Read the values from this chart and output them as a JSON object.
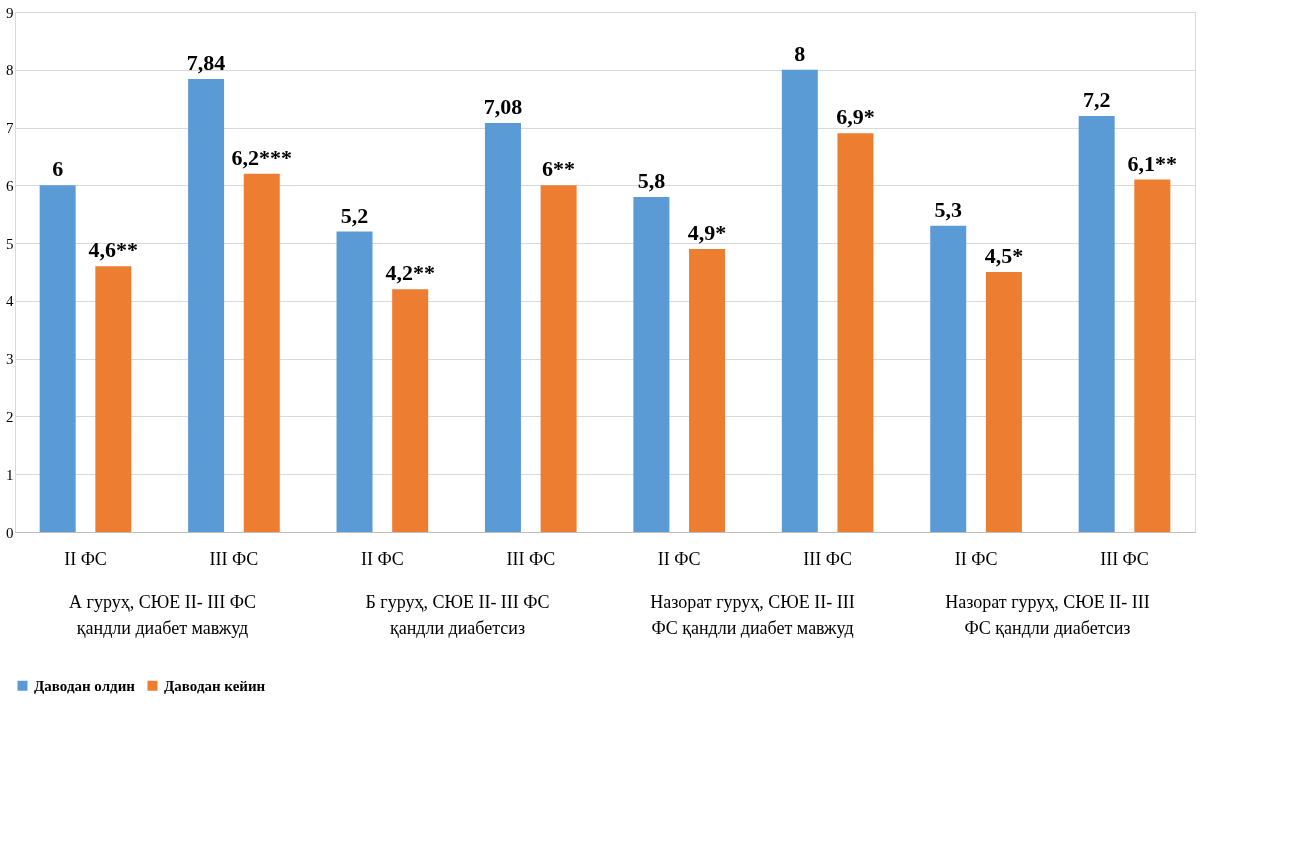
{
  "chart_data": {
    "type": "bar",
    "categories": [
      "II ФС",
      "III ФС",
      "II ФС",
      "III ФС",
      "II ФС",
      "III ФС",
      "II ФС",
      "III ФС"
    ],
    "series": [
      {
        "name": "Даводан олдин",
        "color": "#5b9bd5",
        "values": [
          6,
          7.84,
          5.2,
          7.08,
          5.8,
          8,
          5.3,
          7.2
        ],
        "value_labels": [
          "6",
          "7,84",
          "5,2",
          "7,08",
          "5,8",
          "8",
          "5,3",
          "7,2"
        ]
      },
      {
        "name": "Даводан кейин",
        "color": "#ed7d31",
        "values": [
          4.6,
          6.2,
          4.2,
          6,
          4.9,
          6.9,
          4.5,
          6.1
        ],
        "value_labels": [
          "4,6**",
          "6,2***",
          "4,2**",
          "6**",
          "4,9*",
          "6,9*",
          "4,5*",
          "6,1**"
        ]
      }
    ],
    "annotations": [
      "А гуруҳ, СЮЕ II- III ФС қандли диабет мавжуд",
      "Б гуруҳ, СЮЕ II- III ФС қандли диабетсиз",
      "Назорат гуруҳ, СЮЕ II- III ФС қандли диабет мавжуд",
      "Назорат гуруҳ, СЮЕ II- III ФС қандли диабетсиз"
    ],
    "ylim": [
      0,
      9
    ],
    "yticks": [
      0,
      1,
      2,
      3,
      4,
      5,
      6,
      7,
      8,
      9
    ],
    "grid": "y",
    "legend": "bottom"
  }
}
